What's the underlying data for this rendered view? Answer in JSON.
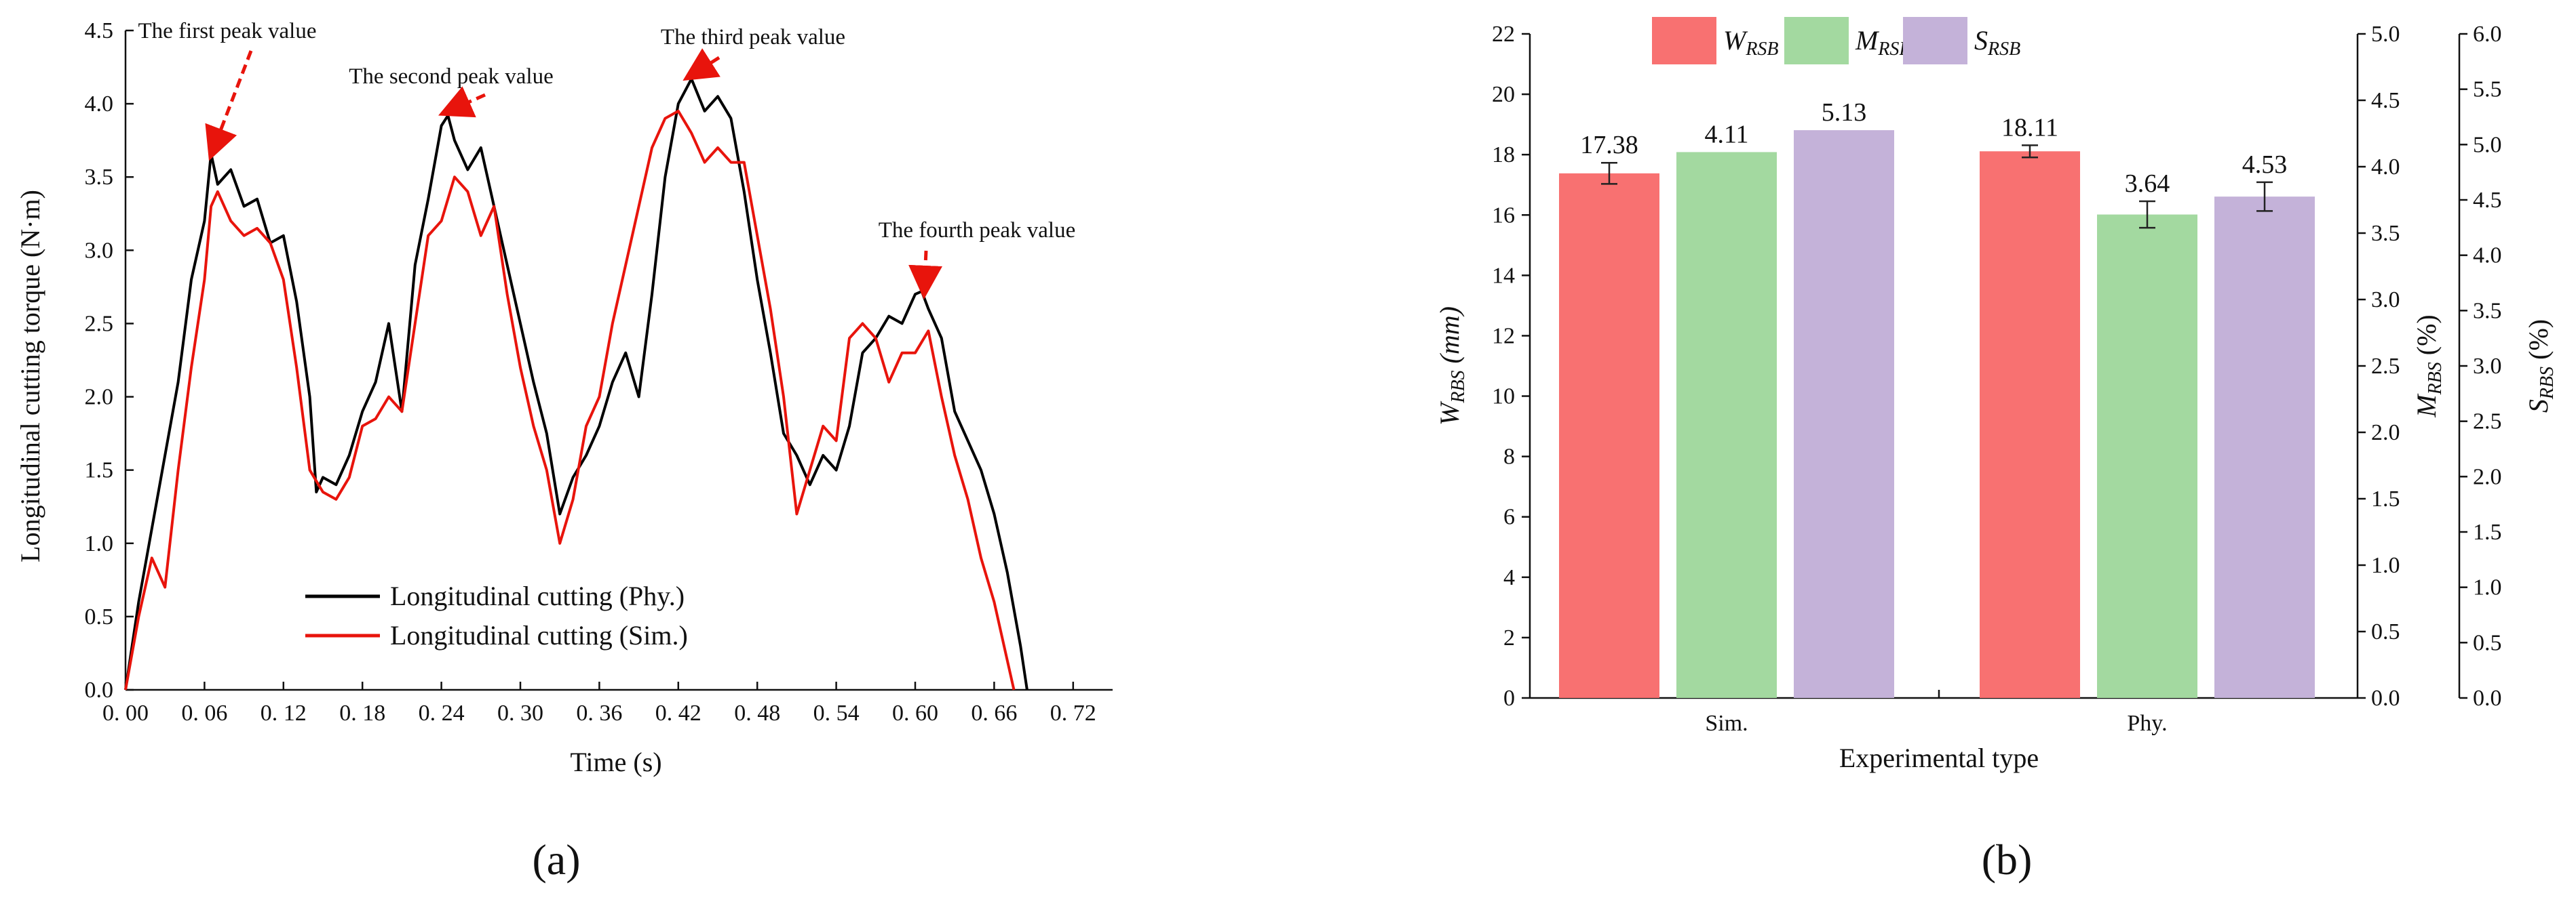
{
  "panels": {
    "a_label": "(a)",
    "b_label": "(b)"
  },
  "chart_data": [
    {
      "type": "line",
      "panel": "(a)",
      "xlabel": "Time (s)",
      "ylabel": "Longitudinal cutting torque (N·m)",
      "xlim": [
        0,
        0.75
      ],
      "ylim": [
        0,
        4.5
      ],
      "xticks": [
        "0. 00",
        "0. 06",
        "0. 12",
        "0. 18",
        "0. 24",
        "0. 30",
        "0. 36",
        "0. 42",
        "0. 48",
        "0. 54",
        "0. 60",
        "0. 66",
        "0. 72"
      ],
      "yticks": [
        "0.0",
        "0.5",
        "1.0",
        "1.5",
        "2.0",
        "2.5",
        "3.0",
        "3.5",
        "4.0",
        "4.5"
      ],
      "grid": false,
      "legend_position": "bottom-left",
      "series": [
        {
          "name": "Longitudinal cutting (Phy.)",
          "color": "#000000",
          "x": [
            0.0,
            0.01,
            0.02,
            0.03,
            0.04,
            0.05,
            0.06,
            0.065,
            0.07,
            0.08,
            0.09,
            0.1,
            0.11,
            0.12,
            0.13,
            0.14,
            0.145,
            0.15,
            0.16,
            0.17,
            0.18,
            0.19,
            0.2,
            0.21,
            0.22,
            0.23,
            0.24,
            0.245,
            0.25,
            0.26,
            0.27,
            0.28,
            0.29,
            0.3,
            0.31,
            0.32,
            0.33,
            0.34,
            0.35,
            0.36,
            0.37,
            0.38,
            0.39,
            0.4,
            0.41,
            0.42,
            0.43,
            0.44,
            0.45,
            0.46,
            0.47,
            0.48,
            0.49,
            0.5,
            0.51,
            0.52,
            0.53,
            0.54,
            0.55,
            0.56,
            0.57,
            0.58,
            0.59,
            0.6,
            0.605,
            0.61,
            0.62,
            0.63,
            0.64,
            0.65,
            0.66,
            0.67,
            0.68,
            0.685
          ],
          "values": [
            0.0,
            0.6,
            1.1,
            1.6,
            2.1,
            2.8,
            3.2,
            3.66,
            3.45,
            3.55,
            3.3,
            3.35,
            3.05,
            3.1,
            2.65,
            2.0,
            1.35,
            1.45,
            1.4,
            1.6,
            1.9,
            2.1,
            2.5,
            1.9,
            2.9,
            3.35,
            3.85,
            3.92,
            3.75,
            3.55,
            3.7,
            3.3,
            2.9,
            2.5,
            2.1,
            1.75,
            1.2,
            1.45,
            1.6,
            1.8,
            2.1,
            2.3,
            2.0,
            2.7,
            3.5,
            4.0,
            4.17,
            3.95,
            4.05,
            3.9,
            3.4,
            2.8,
            2.3,
            1.75,
            1.6,
            1.4,
            1.6,
            1.5,
            1.8,
            2.3,
            2.4,
            2.55,
            2.5,
            2.7,
            2.72,
            2.6,
            2.4,
            1.9,
            1.7,
            1.5,
            1.2,
            0.8,
            0.3,
            0.0
          ]
        },
        {
          "name": "Longitudinal cutting (Sim.)",
          "color": "#e8140c",
          "x": [
            0.0,
            0.01,
            0.02,
            0.03,
            0.04,
            0.05,
            0.06,
            0.065,
            0.07,
            0.08,
            0.09,
            0.1,
            0.11,
            0.12,
            0.13,
            0.14,
            0.15,
            0.16,
            0.17,
            0.18,
            0.19,
            0.2,
            0.21,
            0.22,
            0.23,
            0.24,
            0.25,
            0.26,
            0.27,
            0.28,
            0.29,
            0.3,
            0.31,
            0.32,
            0.33,
            0.34,
            0.35,
            0.36,
            0.37,
            0.38,
            0.39,
            0.4,
            0.41,
            0.42,
            0.43,
            0.44,
            0.45,
            0.46,
            0.47,
            0.48,
            0.49,
            0.5,
            0.51,
            0.52,
            0.53,
            0.54,
            0.55,
            0.56,
            0.57,
            0.58,
            0.59,
            0.6,
            0.61,
            0.62,
            0.63,
            0.64,
            0.65,
            0.66,
            0.67,
            0.675
          ],
          "values": [
            0.0,
            0.5,
            0.9,
            0.7,
            1.5,
            2.2,
            2.8,
            3.3,
            3.4,
            3.2,
            3.1,
            3.15,
            3.05,
            2.8,
            2.2,
            1.5,
            1.35,
            1.3,
            1.45,
            1.8,
            1.85,
            2.0,
            1.9,
            2.5,
            3.1,
            3.2,
            3.5,
            3.4,
            3.1,
            3.3,
            2.7,
            2.2,
            1.8,
            1.5,
            1.0,
            1.3,
            1.8,
            2.0,
            2.5,
            2.9,
            3.3,
            3.7,
            3.9,
            3.95,
            3.8,
            3.6,
            3.7,
            3.6,
            3.6,
            3.1,
            2.6,
            2.0,
            1.2,
            1.5,
            1.8,
            1.7,
            2.4,
            2.5,
            2.4,
            2.1,
            2.3,
            2.3,
            2.45,
            2.0,
            1.6,
            1.3,
            0.9,
            0.6,
            0.2,
            0.0
          ]
        }
      ],
      "annotations": [
        {
          "text": "The first peak value",
          "x": 0.065,
          "y": 3.66
        },
        {
          "text": "The second peak value",
          "x": 0.245,
          "y": 3.92
        },
        {
          "text": "The third peak value",
          "x": 0.43,
          "y": 4.17
        },
        {
          "text": "The fourth peak value",
          "x": 0.605,
          "y": 2.72
        }
      ]
    },
    {
      "type": "bar",
      "panel": "(b)",
      "xlabel": "Experimental type",
      "categories": [
        "Sim.",
        "Phy."
      ],
      "series": [
        {
          "name_main": "W",
          "name_sub": "RSB",
          "axis": "left",
          "color": "#f87171",
          "values": [
            17.38,
            18.11
          ],
          "errors": [
            0.35,
            0.2
          ],
          "labels": [
            "17.38",
            "18.11"
          ]
        },
        {
          "name_main": "M",
          "name_sub": "RSB",
          "axis": "mid",
          "color": "#a3d9a0",
          "values": [
            4.11,
            3.64
          ],
          "errors": [
            0.0,
            0.1
          ],
          "labels": [
            "4.11",
            "3.64"
          ]
        },
        {
          "name_main": "S",
          "name_sub": "RSB",
          "axis": "right",
          "color": "#c4b2d9",
          "values": [
            5.13,
            4.53
          ],
          "errors": [
            0.0,
            0.13
          ],
          "labels": [
            "5.13",
            "4.53"
          ]
        }
      ],
      "axes": {
        "left": {
          "label_main": "W",
          "label_sub": "RBS",
          "label_unit": " (mm)",
          "ylim": [
            0,
            22
          ],
          "ticks": [
            "0",
            "2",
            "4",
            "6",
            "8",
            "10",
            "12",
            "14",
            "16",
            "18",
            "20",
            "22"
          ]
        },
        "mid": {
          "label_main": "M",
          "label_sub": "RBS",
          "label_unit": " (%)",
          "ylim": [
            0,
            5.0
          ],
          "ticks": [
            "0.0",
            "0.5",
            "1.0",
            "1.5",
            "2.0",
            "2.5",
            "3.0",
            "3.5",
            "4.0",
            "4.5",
            "5.0"
          ]
        },
        "right": {
          "label_main": "S",
          "label_sub": "RBS",
          "label_unit": " (%)",
          "ylim": [
            0,
            6.0
          ],
          "ticks": [
            "0.0",
            "0.5",
            "1.0",
            "1.5",
            "2.0",
            "2.5",
            "3.0",
            "3.5",
            "4.0",
            "4.5",
            "5.0",
            "5.5",
            "6.0"
          ]
        }
      },
      "grid": false,
      "legend_position": "top"
    }
  ]
}
